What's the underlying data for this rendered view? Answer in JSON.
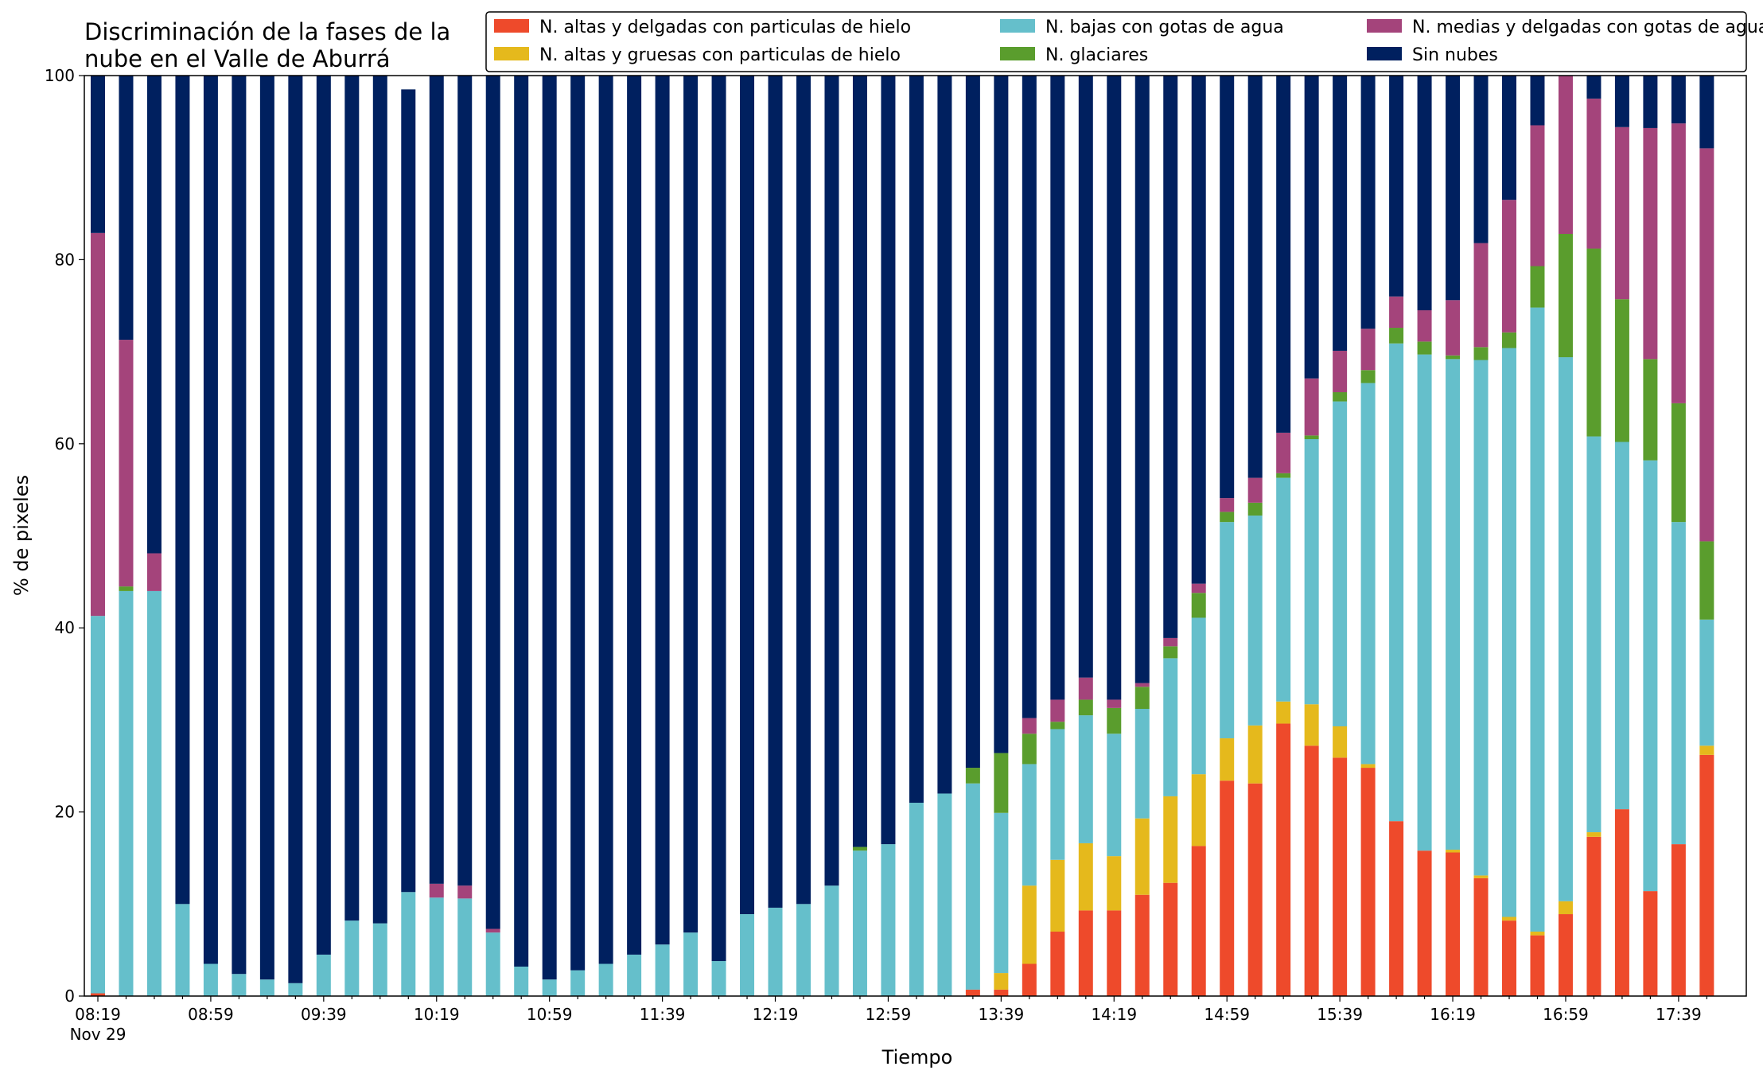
{
  "chart_data": {
    "type": "bar",
    "stacked": true,
    "title": "Discriminación de la fases de la nube en el Valle de Aburrá",
    "title_lines": [
      "Discriminación de la fases de la",
      "nube en el Valle de Aburrá"
    ],
    "xlabel": "Tiempo",
    "ylabel": "% de pixeles",
    "ylim": [
      0,
      100
    ],
    "yticks": [
      "0",
      "20",
      "40",
      "60",
      "80",
      "100"
    ],
    "xticks": [
      "08:19",
      "08:59",
      "09:39",
      "10:19",
      "10:59",
      "11:39",
      "12:19",
      "12:59",
      "13:39",
      "14:19",
      "14:59",
      "15:39",
      "16:19",
      "16:59",
      "17:39"
    ],
    "date_label": "Nov 29",
    "grid": false,
    "legend_position": "top-right",
    "categories": [
      "08:19",
      "08:29",
      "08:39",
      "08:49",
      "08:59",
      "09:09",
      "09:19",
      "09:29",
      "09:39",
      "09:49",
      "09:59",
      "10:09",
      "10:19",
      "10:29",
      "10:39",
      "10:49",
      "10:59",
      "11:09",
      "11:19",
      "11:29",
      "11:39",
      "11:49",
      "11:59",
      "12:09",
      "12:19",
      "12:29",
      "12:39",
      "12:49",
      "12:59",
      "13:09",
      "13:19",
      "13:29",
      "13:39",
      "13:49",
      "13:59",
      "14:09",
      "14:19",
      "14:29",
      "14:39",
      "14:49",
      "14:59",
      "15:09",
      "15:19",
      "15:29",
      "15:39",
      "15:49",
      "15:59",
      "16:09",
      "16:19",
      "16:29",
      "16:39",
      "16:49",
      "16:59",
      "17:09",
      "17:19",
      "17:29",
      "17:39",
      "17:49"
    ],
    "series": [
      {
        "name": "N. altas y delgadas con particulas de hielo",
        "color": "#ee4a2b",
        "values": [
          0.3,
          0,
          0,
          0,
          0,
          0,
          0,
          0,
          0,
          0,
          0,
          0,
          0,
          0,
          0,
          0,
          0,
          0,
          0,
          0,
          0,
          0,
          0,
          0,
          0,
          0,
          0,
          0,
          0,
          0,
          0,
          0.7,
          0.7,
          3.5,
          7,
          9.3,
          9.3,
          11,
          12.3,
          16.3,
          23.4,
          23.1,
          29.6,
          27.2,
          25.9,
          24.8,
          19,
          15.8,
          15.6,
          12.8,
          8.2,
          6.6,
          8.9,
          17.3,
          20.3,
          11.4,
          16.5,
          26.2
        ]
      },
      {
        "name": "N. altas y gruesas con particulas de hielo",
        "color": "#e5b91c",
        "values": [
          0,
          0,
          0,
          0,
          0,
          0,
          0,
          0,
          0,
          0,
          0,
          0,
          0,
          0,
          0,
          0,
          0,
          0,
          0,
          0,
          0,
          0,
          0,
          0,
          0,
          0,
          0,
          0,
          0,
          0,
          0,
          0,
          1.8,
          8.5,
          7.8,
          7.3,
          5.9,
          8.3,
          9.4,
          7.8,
          4.6,
          6.3,
          2.4,
          4.5,
          3.4,
          0.4,
          0,
          0,
          0.3,
          0.3,
          0.4,
          0.4,
          1.4,
          0.5,
          0,
          0,
          0,
          1.0
        ]
      },
      {
        "name": "N. bajas con gotas de agua",
        "color": "#65bfcb",
        "values": [
          41,
          44,
          44,
          10,
          3.5,
          2.4,
          1.8,
          1.4,
          4.5,
          8.2,
          7.9,
          11.3,
          10.7,
          10.6,
          6.9,
          3.2,
          1.8,
          2.8,
          3.5,
          4.5,
          5.6,
          6.9,
          3.8,
          8.9,
          9.6,
          10,
          12,
          15.8,
          16.5,
          21,
          22,
          22.4,
          17.4,
          13.2,
          14.2,
          13.9,
          13.3,
          11.9,
          15,
          17,
          23.5,
          22.8,
          24.3,
          28.8,
          35.3,
          41.4,
          51.9,
          53.9,
          53.3,
          56,
          61.8,
          67.8,
          59.1,
          43,
          39.9,
          46.8,
          35,
          13.7
        ]
      },
      {
        "name": "N. glaciares",
        "color": "#5a9d2d",
        "values": [
          0,
          0.5,
          0,
          0,
          0,
          0,
          0,
          0,
          0,
          0,
          0,
          0,
          0,
          0,
          0,
          0,
          0,
          0,
          0,
          0,
          0,
          0,
          0,
          0,
          0,
          0,
          0,
          0.4,
          0,
          0,
          0,
          1.7,
          6.5,
          3.3,
          0.8,
          1.7,
          2.8,
          2.4,
          1.3,
          2.7,
          1.1,
          1.4,
          0.5,
          0.4,
          1,
          1.4,
          1.7,
          1.4,
          0.4,
          1.4,
          1.7,
          4.5,
          13.4,
          20.4,
          15.5,
          11,
          12.9,
          8.5
        ]
      },
      {
        "name": "N. medias y delgadas con gotas de agua",
        "color": "#a4447b",
        "values": [
          41.6,
          26.8,
          4.1,
          0,
          0,
          0,
          0,
          0,
          0,
          0,
          0,
          0,
          1.5,
          1.4,
          0.4,
          0,
          0,
          0,
          0,
          0,
          0,
          0,
          0,
          0,
          0,
          0,
          0,
          0,
          0,
          0,
          0,
          0,
          0,
          1.7,
          2.4,
          2.4,
          0.9,
          0.4,
          0.9,
          1,
          1.5,
          2.7,
          4.4,
          6.2,
          4.5,
          4.5,
          3.4,
          3.4,
          6,
          11.3,
          14.4,
          15.3,
          17.2,
          16.3,
          18.7,
          25.1,
          30.4,
          42.7
        ]
      },
      {
        "name": "Sin nubes",
        "color": "#00205f",
        "values": [
          17.1,
          28.7,
          51.9,
          90,
          96.5,
          97.6,
          98.2,
          98.6,
          95.5,
          91.8,
          92.1,
          87.2,
          87.8,
          88,
          92.7,
          96.8,
          98.2,
          97.2,
          96.5,
          95.5,
          94.4,
          93.1,
          96.2,
          91.1,
          90.4,
          90,
          88,
          83.8,
          83.5,
          79,
          78,
          75.2,
          73.6,
          69.8,
          67.8,
          65.4,
          67.8,
          66,
          61.1,
          55.2,
          45.9,
          43.7,
          38.8,
          32.9,
          29.9,
          27.5,
          24,
          25.5,
          24.4,
          18.2,
          13.5,
          5.4,
          0,
          2.5,
          5.6,
          5.7,
          5.2,
          7.9
        ]
      }
    ]
  }
}
